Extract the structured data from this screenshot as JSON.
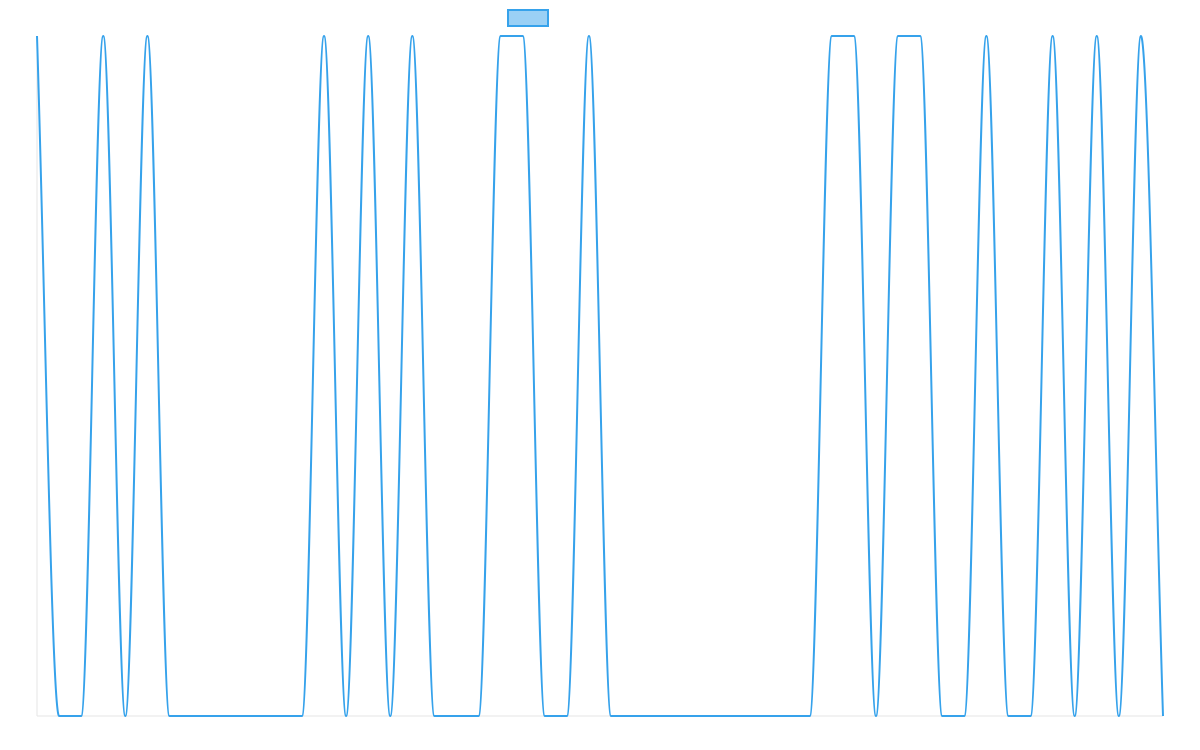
{
  "chart_data": {
    "type": "line",
    "title": "",
    "xlabel": "",
    "ylabel": "",
    "x": [
      0,
      1,
      2,
      3,
      4,
      5,
      6,
      7,
      8,
      9,
      10,
      11,
      12,
      13,
      14,
      15,
      16,
      17,
      18,
      19,
      20,
      21,
      22,
      23,
      24,
      25,
      26,
      27,
      28,
      29,
      30,
      31,
      32,
      33,
      34,
      35,
      36,
      37,
      38,
      39,
      40,
      41,
      42,
      43,
      44,
      45,
      46,
      47,
      48,
      49,
      50,
      51
    ],
    "ylim": [
      0,
      1
    ],
    "xlim": [
      0,
      51
    ],
    "grid": false,
    "legend": "top-center",
    "series": [
      {
        "name": "",
        "color": "#36a2eb",
        "fill": "#9ad0f5",
        "values": [
          1,
          0,
          0,
          1,
          0,
          1,
          0,
          0,
          0,
          0,
          0,
          0,
          0,
          1,
          0,
          1,
          0,
          1,
          0,
          0,
          0,
          1,
          1,
          0,
          0,
          1,
          0,
          0,
          0,
          0,
          0,
          0,
          0,
          0,
          0,
          0,
          1,
          1,
          0,
          1,
          1,
          0,
          0,
          1,
          0,
          0,
          1,
          0,
          1,
          0,
          1,
          0
        ]
      }
    ]
  }
}
